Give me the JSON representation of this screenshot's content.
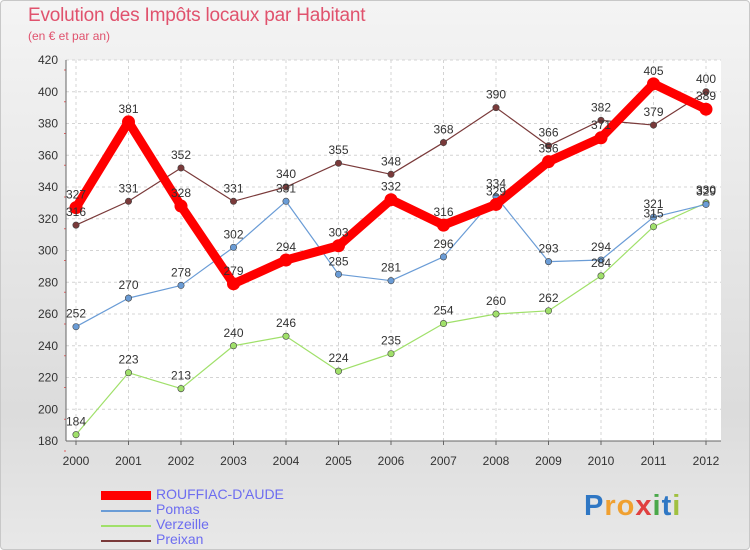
{
  "header": {
    "title": "Evolution des Impôts locaux par Habitant",
    "subtitle": "(en € et par an)"
  },
  "logo": {
    "text": [
      "P",
      "r",
      "o",
      "x",
      "i",
      "t",
      "i"
    ],
    "colors": [
      "#2f77c4",
      "#f0a030",
      "#f0a030",
      "#e04040",
      "#4aa84a",
      "#2f77c4",
      "#a0c040"
    ]
  },
  "chart_data": {
    "type": "line",
    "title": "Evolution des Impôts locaux par Habitant",
    "subtitle": "(en € et par an)",
    "categories": [
      "2000",
      "2001",
      "2002",
      "2003",
      "2004",
      "2005",
      "2006",
      "2007",
      "2008",
      "2009",
      "2010",
      "2011",
      "2012"
    ],
    "ylim": [
      180,
      420
    ],
    "yticks": [
      180,
      200,
      220,
      240,
      260,
      280,
      300,
      320,
      340,
      360,
      380,
      400,
      420
    ],
    "grid": true,
    "legend_position": "bottom-left",
    "series": [
      {
        "name": "ROUFFIAC-D'AUDE",
        "color": "#ff0000",
        "emphasis": true,
        "values": [
          327,
          381,
          328,
          279,
          294,
          303,
          332,
          316,
          329,
          356,
          371,
          405,
          389
        ],
        "labels": [
          "327",
          "381",
          "328",
          "279",
          "294",
          "303",
          "332",
          "316",
          "329",
          "356",
          "371",
          "405",
          "389"
        ]
      },
      {
        "name": "Pomas",
        "color": "#6a9cd6",
        "emphasis": false,
        "values": [
          252,
          270,
          278,
          302,
          331,
          285,
          281,
          296,
          334,
          293,
          294,
          321,
          329
        ],
        "labels": [
          "252",
          "270",
          "278",
          "302",
          "331",
          "285",
          "281",
          "296",
          "334",
          "293",
          "294",
          "321",
          "329"
        ]
      },
      {
        "name": "Verzeille",
        "color": "#a0e06a",
        "emphasis": false,
        "values": [
          184,
          223,
          213,
          240,
          246,
          224,
          235,
          254,
          260,
          262,
          284,
          315,
          330
        ],
        "labels": [
          "184",
          "223",
          "213",
          "240",
          "246",
          "224",
          "235",
          "254",
          "260",
          "262",
          "284",
          "315",
          "330"
        ]
      },
      {
        "name": "Preixan",
        "color": "#7a3a3a",
        "emphasis": false,
        "values": [
          316,
          331,
          352,
          331,
          340,
          355,
          348,
          368,
          390,
          366,
          382,
          379,
          400
        ],
        "labels": [
          "316",
          "331",
          "352",
          "331",
          "340",
          "355",
          "348",
          "368",
          "390",
          "366",
          "382",
          "379",
          "400"
        ]
      }
    ]
  }
}
